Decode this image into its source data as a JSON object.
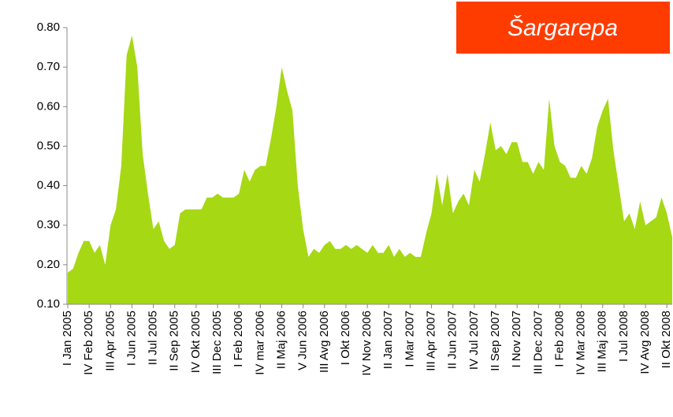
{
  "chart_data": {
    "type": "area",
    "title": "Šargarepa",
    "categories": [
      "I Jan 2005",
      null,
      null,
      null,
      "IV Feb 2005",
      null,
      null,
      null,
      "III Apr 2005",
      null,
      null,
      null,
      "I Jun 2005",
      null,
      null,
      null,
      "II Jul 2005",
      null,
      null,
      null,
      "II Sep 2005",
      null,
      null,
      null,
      "IV Okt 2005",
      null,
      null,
      null,
      "III Dec 2005",
      null,
      null,
      null,
      "I Feb 2006",
      null,
      null,
      null,
      "IV mar 2006",
      null,
      null,
      null,
      "II Maj 2006",
      null,
      null,
      null,
      "V Jun 2006",
      null,
      null,
      null,
      "III Avg 2006",
      null,
      null,
      null,
      "I Okt 2006",
      null,
      null,
      null,
      "IV Nov 2006",
      null,
      null,
      null,
      "II Jan 2007",
      null,
      null,
      null,
      "I Mar 2007",
      null,
      null,
      null,
      "III Apr 2007",
      null,
      null,
      null,
      "II Jun 2007",
      null,
      null,
      null,
      "IV Jul 2007",
      null,
      null,
      null,
      "II Sep 2007",
      null,
      null,
      null,
      "I Nov 2007",
      null,
      null,
      null,
      "III Dec 2007",
      null,
      null,
      null,
      "I Feb 2008",
      null,
      null,
      null,
      "IV Mar 2008",
      null,
      null,
      null,
      "III Maj 2008",
      null,
      null,
      null,
      "I Jul 2008",
      null,
      null,
      null,
      "IV Avg 2008",
      null,
      null,
      null,
      "II Okt 2008",
      null
    ],
    "values": [
      0.18,
      0.19,
      0.23,
      0.26,
      0.26,
      0.23,
      0.25,
      0.2,
      0.3,
      0.34,
      0.45,
      0.73,
      0.78,
      0.7,
      0.48,
      0.38,
      0.29,
      0.31,
      0.26,
      0.24,
      0.25,
      0.33,
      0.34,
      0.34,
      0.34,
      0.34,
      0.37,
      0.37,
      0.38,
      0.37,
      0.37,
      0.37,
      0.38,
      0.44,
      0.41,
      0.44,
      0.45,
      0.45,
      0.52,
      0.6,
      0.7,
      0.64,
      0.59,
      0.4,
      0.29,
      0.22,
      0.24,
      0.23,
      0.25,
      0.26,
      0.24,
      0.24,
      0.25,
      0.24,
      0.25,
      0.24,
      0.23,
      0.25,
      0.23,
      0.23,
      0.25,
      0.22,
      0.24,
      0.22,
      0.23,
      0.22,
      0.22,
      0.28,
      0.33,
      0.43,
      0.35,
      0.43,
      0.33,
      0.36,
      0.38,
      0.35,
      0.44,
      0.41,
      0.48,
      0.56,
      0.49,
      0.5,
      0.48,
      0.51,
      0.51,
      0.46,
      0.46,
      0.43,
      0.46,
      0.44,
      0.62,
      0.5,
      0.46,
      0.45,
      0.42,
      0.42,
      0.45,
      0.43,
      0.47,
      0.55,
      0.59,
      0.62,
      0.49,
      0.4,
      0.31,
      0.33,
      0.29,
      0.36,
      0.3,
      0.31,
      0.32,
      0.37,
      0.33,
      0.27
    ],
    "color": "#a6d814",
    "title_background": "#ff3c00",
    "ylim": [
      0.1,
      0.8
    ],
    "yticks": [
      {
        "value": 0.1,
        "label": "0.10"
      },
      {
        "value": 0.2,
        "label": "0.20"
      },
      {
        "value": 0.3,
        "label": "0.30"
      },
      {
        "value": 0.4,
        "label": "0.40"
      },
      {
        "value": 0.5,
        "label": "0.50"
      },
      {
        "value": 0.6,
        "label": "0.60"
      },
      {
        "value": 0.7,
        "label": "0.70"
      },
      {
        "value": 0.8,
        "label": "0.80"
      }
    ],
    "grid": false
  }
}
